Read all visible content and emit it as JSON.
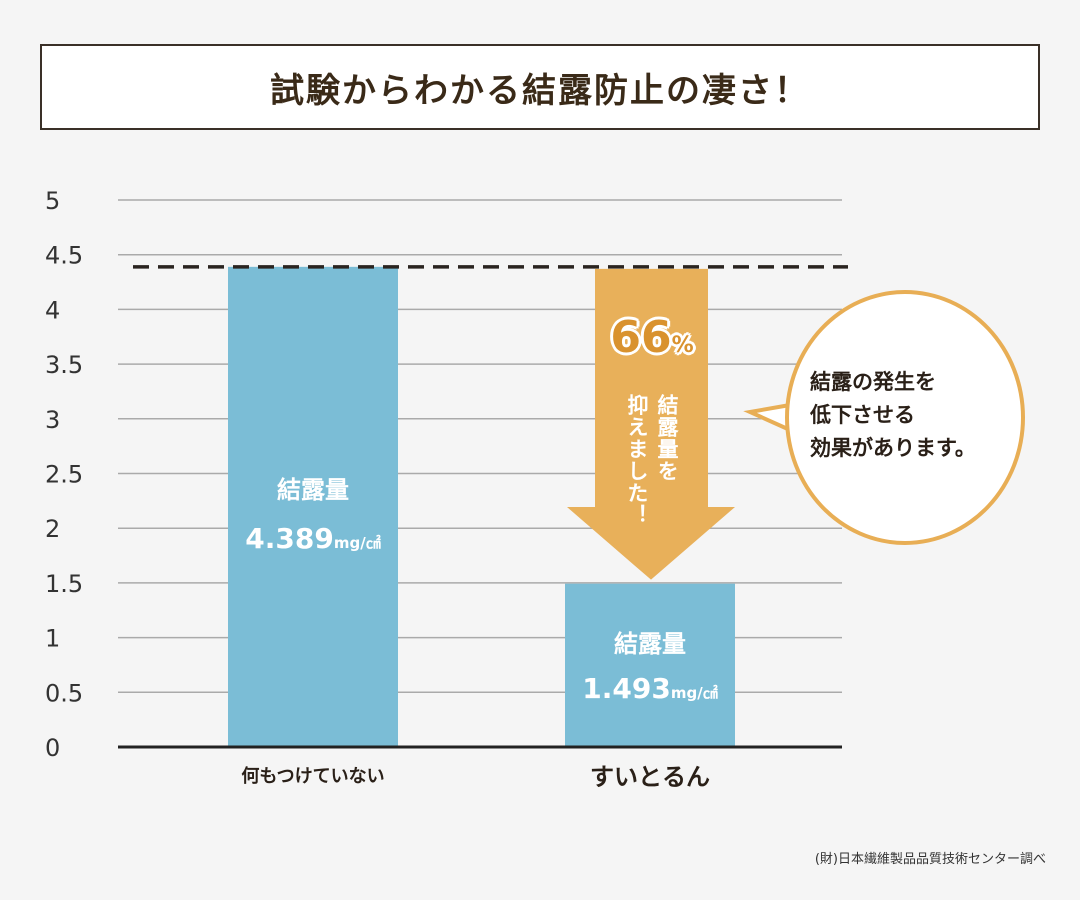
{
  "title": "試験からわかる結露防止の凄さ！",
  "chart_data": {
    "type": "bar",
    "title": "試験からわかる結露防止の凄さ！",
    "categories": [
      "何もつけていない",
      "すいとるん"
    ],
    "values": [
      4.389,
      1.493
    ],
    "unit": "mg/㎠",
    "value_label": "結露量",
    "value_texts": [
      "4.389",
      "1.493"
    ],
    "ylim": [
      0,
      5
    ],
    "yticks": [
      "0",
      "0.5",
      "1",
      "1.5",
      "2",
      "2.5",
      "3",
      "3.5",
      "4",
      "4.5",
      "5"
    ],
    "reference_line": 4.389,
    "grid": true,
    "annotation": {
      "percent": "66",
      "percent_sign": "%",
      "text_col1": "結露量を",
      "text_col2": "抑えました！"
    },
    "callout": [
      "結露の発生を",
      "低下させる",
      "効果があります。"
    ]
  },
  "colors": {
    "bar": "#7bbdd6",
    "arrow": "#e8b05a",
    "percent": "#d9922e"
  },
  "source": "(財)日本繊維製品品質技術センター調べ"
}
